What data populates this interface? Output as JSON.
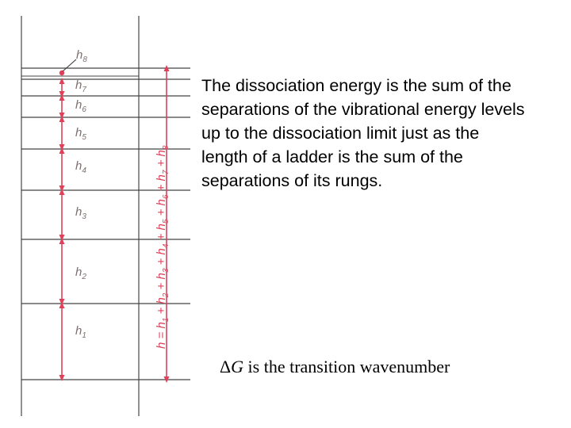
{
  "diagram": {
    "levels": [
      {
        "symbol": "h",
        "subscript": "1"
      },
      {
        "symbol": "h",
        "subscript": "2"
      },
      {
        "symbol": "h",
        "subscript": "3"
      },
      {
        "symbol": "h",
        "subscript": "4"
      },
      {
        "symbol": "h",
        "subscript": "5"
      },
      {
        "symbol": "h",
        "subscript": "6"
      },
      {
        "symbol": "h",
        "subscript": "7"
      },
      {
        "symbol": "h",
        "subscript": "8"
      }
    ],
    "total_equation": "h = h1 + h2 + h3 + h4 + h5 + h6 + h7 + h8",
    "colors": {
      "arrow": "#e0405a",
      "rung": "#444444",
      "rail": "#555555",
      "label": "#7d6f70"
    }
  },
  "text": {
    "explanation": "The dissociation energy is the sum of the separations of the vibrational energy levels up to the dissociation limit just as the length of a ladder is the sum of the separations of its rungs.",
    "delta_symbol": "Δ",
    "g_symbol": "G",
    "transition_rest": " is the transition wavenumber"
  }
}
